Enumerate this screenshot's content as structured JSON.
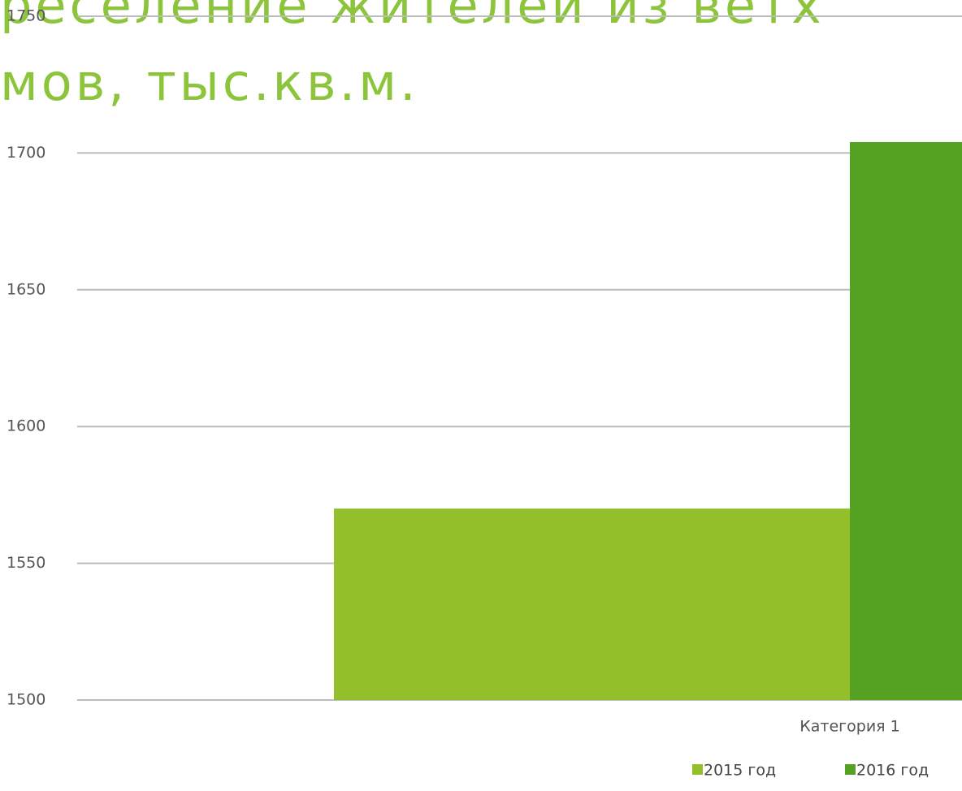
{
  "chart_data": {
    "type": "bar",
    "title_lines": [
      "реселение жителей из ветх",
      "мов, тыс.кв.м."
    ],
    "categories": [
      "Категория 1"
    ],
    "series": [
      {
        "name": "2015 год",
        "color": "#93c02a",
        "values": [
          1570
        ]
      },
      {
        "name": "2016 год",
        "color": "#55a122",
        "values": [
          1704
        ]
      }
    ],
    "ylim": [
      1500,
      1750
    ],
    "yticks": [
      1500,
      1550,
      1600,
      1650,
      1700,
      1750
    ],
    "grid": true
  }
}
